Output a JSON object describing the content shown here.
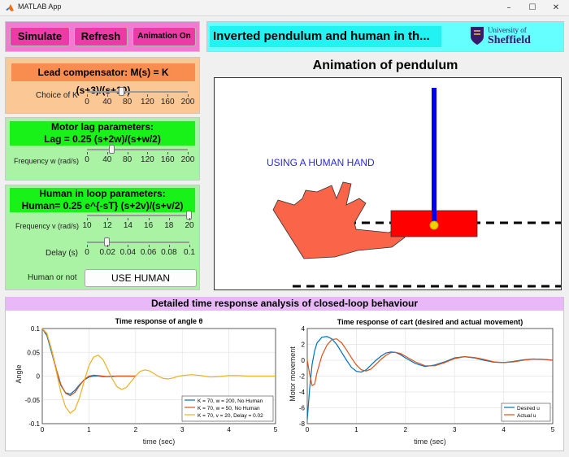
{
  "window": {
    "title": "MATLAB App",
    "minimize": "–",
    "maximize": "☐",
    "close": "✕"
  },
  "toolbar": {
    "simulate": "Simulate",
    "refresh": "Refresh",
    "animation": "Animation On"
  },
  "header": {
    "title": "Inverted pendulum and human in th...",
    "logo_line1": "University of",
    "logo_line2": "Sheffield"
  },
  "lead": {
    "title": "Lead compensator: M(s) = K (s+3)/(s+10)",
    "slider_label": "Choice of K",
    "ticks": [
      "0",
      "40",
      "80",
      "120",
      "160",
      "200"
    ],
    "min": 0,
    "max": 200,
    "value": 70
  },
  "motor": {
    "title_line1": "Motor lag parameters:",
    "title_line2": "Lag = 0.25 (s+2w)/(s+w/2)",
    "slider_label": "Frequency w (rad/s)",
    "ticks": [
      "0",
      "40",
      "80",
      "120",
      "160",
      "200"
    ],
    "min": 0,
    "max": 200,
    "value": 50
  },
  "human": {
    "title_line1": "Human in loop parameters:",
    "title_line2": "Human= 0.25 e^{-sT} (s+2v)/(s+v/2)",
    "freq_label": "Frequency v (rad/s)",
    "freq_ticks": [
      "10",
      "12",
      "14",
      "16",
      "18",
      "20"
    ],
    "freq_min": 10,
    "freq_max": 20,
    "freq_value": 20,
    "delay_label": "Delay (s)",
    "delay_ticks": [
      "0",
      "0.02",
      "0.04",
      "0.06",
      "0.08",
      "0.1"
    ],
    "delay_min": 0,
    "delay_max": 0.1,
    "delay_value": 0.02,
    "mode_label": "Human or not",
    "mode_button": "USE HUMAN"
  },
  "animation": {
    "title": "Animation of pendulum",
    "annotation": "USING A HUMAN HAND"
  },
  "analysis": {
    "title": "Detailed time response analysis of closed-loop behaviour"
  },
  "colors": {
    "blue": "#0072bd",
    "orange": "#d95319",
    "yellow": "#edb120",
    "pink_panel": "#f27ad2",
    "cyan_panel": "#66ffff",
    "lead_panel": "#fbc794",
    "green_panel": "#aaf2a4"
  },
  "chart_data": [
    {
      "type": "line",
      "title": "Time  response  of  angle  θ",
      "xlabel": "time (sec)",
      "ylabel": "Angle",
      "xlim": [
        0,
        5
      ],
      "ylim": [
        -0.1,
        0.1
      ],
      "xticks": [
        "0",
        "1",
        "2",
        "3",
        "4",
        "5"
      ],
      "yticks": [
        "0.1",
        "0.05",
        "0",
        "-0.05",
        "-0.1"
      ],
      "legend_position": "bottom-right",
      "series": [
        {
          "name": "K = 70, w = 200, No Human",
          "color": "#0072bd",
          "x": [
            0,
            0.1,
            0.2,
            0.3,
            0.4,
            0.5,
            0.6,
            0.7,
            0.8,
            0.9,
            1.0,
            1.1,
            1.2,
            1.3,
            1.4,
            1.5,
            1.6,
            1.7,
            1.8,
            1.9,
            2.0
          ],
          "y": [
            0.1,
            0.085,
            0.05,
            0.012,
            -0.02,
            -0.035,
            -0.038,
            -0.03,
            -0.018,
            -0.008,
            -0.002,
            0.0,
            0.0,
            -0.001,
            -0.001,
            0.0,
            0.0,
            0.0,
            0.0,
            0.0,
            0.0
          ]
        },
        {
          "name": "K = 70, w = 50, No Human",
          "color": "#d95319",
          "x": [
            0,
            0.1,
            0.2,
            0.3,
            0.4,
            0.5,
            0.6,
            0.7,
            0.8,
            0.9,
            1.0,
            1.1,
            1.2,
            1.3,
            1.4,
            1.5,
            1.6,
            1.7,
            1.8,
            1.9,
            2.0
          ],
          "y": [
            0.1,
            0.088,
            0.055,
            0.015,
            -0.018,
            -0.036,
            -0.041,
            -0.034,
            -0.02,
            -0.007,
            0.0,
            0.002,
            0.001,
            0.0,
            -0.001,
            -0.001,
            0.0,
            0.0,
            0.0,
            0.0,
            0.0
          ]
        },
        {
          "name": "K = 70, v = 20, Delay = 0.02",
          "color": "#edb120",
          "x": [
            0,
            0.1,
            0.2,
            0.3,
            0.4,
            0.5,
            0.6,
            0.7,
            0.8,
            0.9,
            1.0,
            1.1,
            1.2,
            1.3,
            1.4,
            1.5,
            1.6,
            1.7,
            1.8,
            1.9,
            2.0,
            2.1,
            2.2,
            2.3,
            2.4,
            2.5,
            2.6,
            2.7,
            2.8,
            2.9,
            3.0,
            3.2,
            3.4,
            3.6,
            3.8,
            4.0,
            4.2,
            4.4,
            4.6,
            4.8,
            5.0
          ],
          "y": [
            0.1,
            0.09,
            0.055,
            0.01,
            -0.035,
            -0.065,
            -0.078,
            -0.07,
            -0.045,
            -0.01,
            0.022,
            0.04,
            0.044,
            0.035,
            0.015,
            -0.006,
            -0.022,
            -0.028,
            -0.024,
            -0.012,
            0.0,
            0.01,
            0.013,
            0.011,
            0.005,
            -0.001,
            -0.005,
            -0.006,
            -0.004,
            -0.001,
            0.001,
            0.003,
            0.001,
            -0.002,
            -0.001,
            0.001,
            0.001,
            0.0,
            0.0,
            0.0,
            0.0
          ]
        }
      ]
    },
    {
      "type": "line",
      "title": "Time response of cart (desired and actual movement)",
      "xlabel": "time (sec)",
      "ylabel": "Motor movement",
      "xlim": [
        0,
        5
      ],
      "ylim": [
        -8,
        4
      ],
      "xticks": [
        "0",
        "1",
        "2",
        "3",
        "4",
        "5"
      ],
      "yticks": [
        "4",
        "2",
        "0",
        "-2",
        "-4",
        "-6",
        "-8"
      ],
      "legend_position": "bottom-right",
      "series": [
        {
          "name": "Desired u",
          "color": "#0072bd",
          "x": [
            0,
            0.05,
            0.1,
            0.15,
            0.2,
            0.3,
            0.4,
            0.5,
            0.6,
            0.7,
            0.8,
            0.9,
            1.0,
            1.1,
            1.2,
            1.3,
            1.4,
            1.5,
            1.6,
            1.7,
            1.8,
            1.9,
            2.0,
            2.2,
            2.4,
            2.6,
            2.8,
            3.0,
            3.2,
            3.4,
            3.6,
            3.8,
            4.0,
            4.2,
            4.4,
            4.6,
            4.8,
            5.0
          ],
          "y": [
            -7.5,
            -3.5,
            -0.5,
            1.2,
            2.2,
            2.9,
            3.0,
            2.7,
            2.0,
            1.0,
            0.0,
            -0.9,
            -1.4,
            -1.5,
            -1.2,
            -0.6,
            0.0,
            0.5,
            0.9,
            1.05,
            1.0,
            0.7,
            0.3,
            -0.4,
            -0.8,
            -0.6,
            -0.2,
            0.3,
            0.45,
            0.3,
            0.0,
            -0.25,
            -0.3,
            -0.15,
            0.05,
            0.15,
            0.1,
            0.0
          ]
        },
        {
          "name": "Actual u",
          "color": "#d95319",
          "x": [
            0,
            0.05,
            0.1,
            0.15,
            0.2,
            0.3,
            0.4,
            0.5,
            0.6,
            0.7,
            0.8,
            0.9,
            1.0,
            1.1,
            1.2,
            1.3,
            1.4,
            1.5,
            1.6,
            1.7,
            1.8,
            1.9,
            2.0,
            2.2,
            2.4,
            2.6,
            2.8,
            3.0,
            3.2,
            3.4,
            3.6,
            3.8,
            4.0,
            4.2,
            4.4,
            4.6,
            4.8,
            5.0
          ],
          "y": [
            0.0,
            -1.8,
            -3.2,
            -3.0,
            -1.5,
            0.6,
            1.9,
            2.6,
            2.7,
            2.2,
            1.3,
            0.3,
            -0.6,
            -1.2,
            -1.35,
            -1.1,
            -0.5,
            0.1,
            0.6,
            0.95,
            1.0,
            0.85,
            0.5,
            -0.2,
            -0.7,
            -0.7,
            -0.3,
            0.2,
            0.45,
            0.35,
            0.1,
            -0.2,
            -0.3,
            -0.2,
            0.0,
            0.15,
            0.12,
            0.02
          ]
        }
      ]
    }
  ]
}
